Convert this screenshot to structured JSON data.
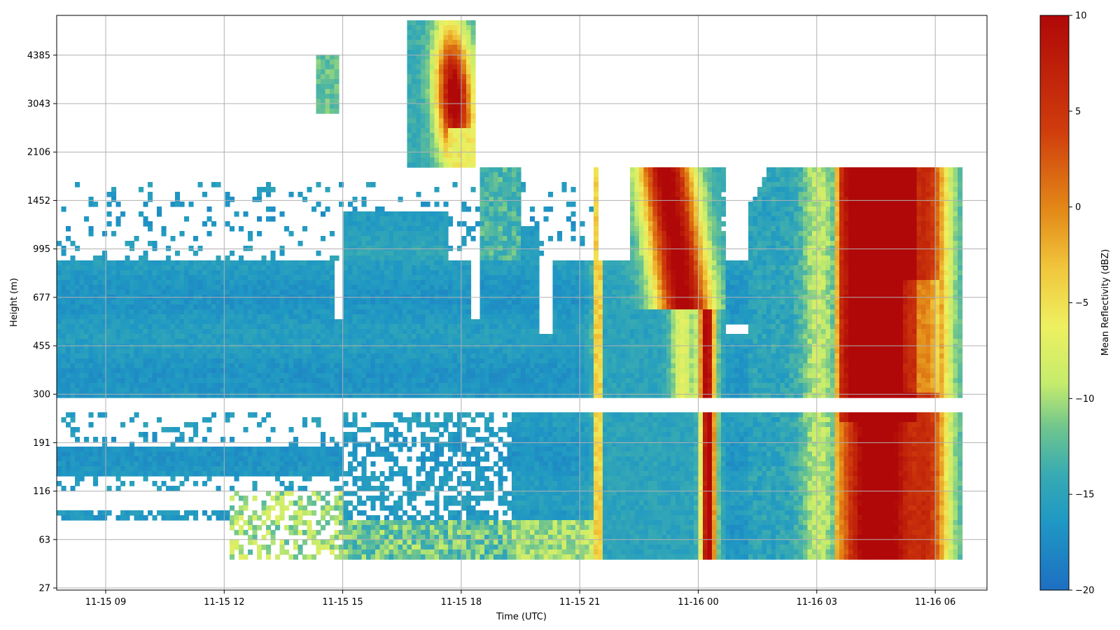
{
  "chart_data": {
    "type": "heatmap",
    "title": "",
    "xlabel": "Time (UTC)",
    "ylabel": "Height (m)",
    "x_ticks": [
      "11-15 09",
      "11-15 12",
      "11-15 15",
      "11-15 18",
      "11-15 21",
      "11-16 00",
      "11-16 03",
      "11-16 06"
    ],
    "y_ticks": [
      "27",
      "63",
      "116",
      "191",
      "300",
      "455",
      "677",
      "995",
      "1452",
      "2106",
      "3043",
      "4385"
    ],
    "grid": true,
    "colorbar": {
      "label": "Mean Reflectivity (dBZ)",
      "min": -20,
      "max": 10,
      "ticks": [
        "10",
        "5",
        "0",
        "−5",
        "−10",
        "−15",
        "−20"
      ],
      "colors": [
        "#1e6fc2",
        "#1f98c4",
        "#37aab3",
        "#6dc48f",
        "#c5ec6c",
        "#eef060",
        "#f1c63c",
        "#e38a18",
        "#cf3c0c",
        "#b00808"
      ]
    },
    "colorbar_label": "Mean Reflectivity (dBZ)"
  }
}
